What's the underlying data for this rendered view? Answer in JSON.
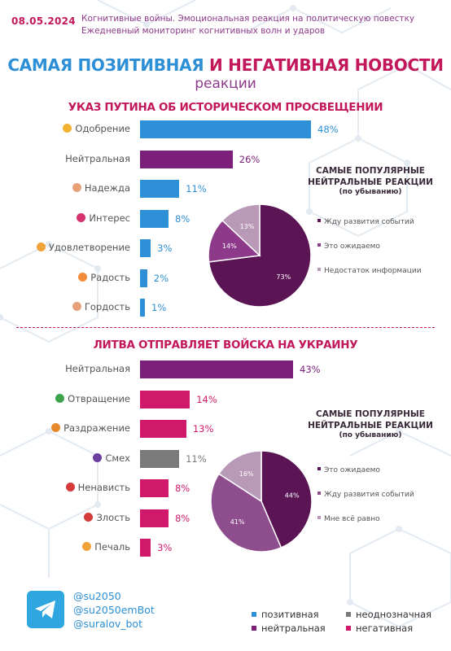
{
  "header": {
    "date": "08.05.2024",
    "line1": "Когнитивные войны. Эмоциональная реакция на политическую повестку",
    "line2": "Ежедневный мониторинг когнитивных волн и ударов"
  },
  "title": {
    "part1": "САМАЯ ПОЗИТИВНАЯ",
    "conj": " И ",
    "part2": "НЕГАТИВНАЯ НОВОСТИ",
    "subtitle": "реакции"
  },
  "colors": {
    "positive": "#2d8fd5",
    "neutral": "#7b1f7b",
    "ambiguous": "#7a7a7a",
    "negative": "#d0196a",
    "pie1": [
      "#5b1454",
      "#8e3a8a",
      "#b89ab8"
    ],
    "pie2": [
      "#5b1454",
      "#8e4e8e",
      "#b89ab8"
    ]
  },
  "chart_data": [
    {
      "type": "bar",
      "title": "УКАЗ ПУТИНА ОБ ИСТОРИЧЕСКОМ ПРОСВЕЩЕНИИ",
      "categories": [
        "Одобрение",
        "Нейтральная",
        "Надежда",
        "Интерес",
        "Удовлетворение",
        "Радость",
        "Гордость"
      ],
      "values": [
        48,
        26,
        11,
        8,
        3,
        2,
        1
      ],
      "value_labels": [
        "48%",
        "26%",
        "11%",
        "8%",
        "3%",
        "2%",
        "1%"
      ],
      "bar_types": [
        "positive",
        "neutral",
        "positive",
        "positive",
        "positive",
        "positive",
        "positive"
      ],
      "icons": [
        "handshake-icon",
        "",
        "hope-icon",
        "interest-icon",
        "satisfied-icon",
        "joy-icon",
        "pride-icon"
      ],
      "icon_colors": [
        "#f2b233",
        "",
        "#e8a07a",
        "#d6336c",
        "#f2a23a",
        "#f28c3a",
        "#e8a07a"
      ],
      "unit": "%"
    },
    {
      "type": "pie",
      "title": "САМЫЕ ПОПУЛЯРНЫЕ НЕЙТРАЛЬНЫЕ РЕАКЦИИ",
      "subtitle": "(по убыванию)",
      "labels": [
        "Жду развития событий",
        "Это ожидаемо",
        "Недостаток информации"
      ],
      "values": [
        73,
        14,
        13
      ],
      "value_labels": [
        "73%",
        "14%",
        "13%"
      ]
    },
    {
      "type": "bar",
      "title": "ЛИТВА ОТПРАВЛЯЕТ ВОЙСКА НА УКРАИНУ",
      "categories": [
        "Нейтральная",
        "Отвращение",
        "Раздражение",
        "Смех",
        "Ненависть",
        "Злость",
        "Печаль"
      ],
      "values": [
        43,
        14,
        13,
        11,
        8,
        8,
        3
      ],
      "value_labels": [
        "43%",
        "14%",
        "13%",
        "11%",
        "8%",
        "8%",
        "3%"
      ],
      "bar_types": [
        "neutral",
        "negative",
        "negative",
        "ambiguous",
        "negative",
        "negative",
        "negative"
      ],
      "icons": [
        "",
        "disgust-icon",
        "irritation-icon",
        "laugh-icon",
        "hate-icon",
        "anger-icon",
        "sad-icon"
      ],
      "icon_colors": [
        "",
        "#3fa34d",
        "#e8892b",
        "#6a3fa0",
        "#d33a3a",
        "#d33a3a",
        "#f2a23a"
      ],
      "unit": "%"
    },
    {
      "type": "pie",
      "title": "САМЫЕ ПОПУЛЯРНЫЕ НЕЙТРАЛЬНЫЕ РЕАКЦИИ",
      "subtitle": "(по убыванию)",
      "labels": [
        "Это ожидаемо",
        "Жду развития событий",
        "Мне всё равно"
      ],
      "values": [
        44,
        41,
        16
      ],
      "value_labels": [
        "44%",
        "41%",
        "16%"
      ]
    }
  ],
  "footer": {
    "handles": [
      "@su2050",
      "@su2050emBot",
      "@suralov_bot"
    ],
    "legend": [
      {
        "label": "позитивная",
        "color": "#2d8fd5"
      },
      {
        "label": "неоднозначная",
        "color": "#7a7a7a"
      },
      {
        "label": "нейтральная",
        "color": "#7b1f7b"
      },
      {
        "label": "негативная",
        "color": "#d0196a"
      }
    ]
  }
}
